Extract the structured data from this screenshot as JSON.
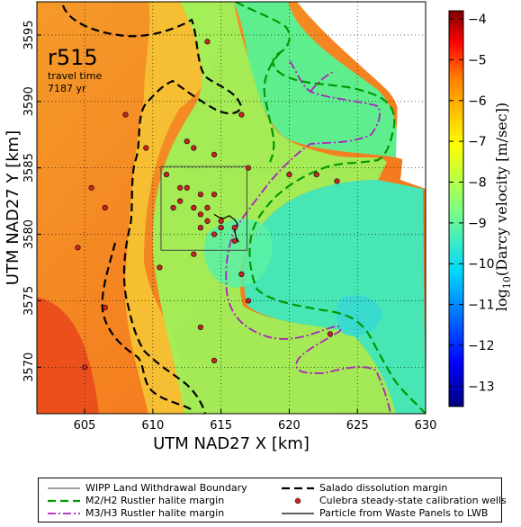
{
  "chart_data": {
    "type": "heatmap",
    "panel_label": "r515",
    "travel_time_label": "travel time",
    "travel_time_value": "7187 yr",
    "xlabel": "UTM NAD27 X [km]",
    "ylabel": "UTM NAD27 Y [km]",
    "xlim": [
      601.5,
      630
    ],
    "ylim": [
      3566.5,
      3597.5
    ],
    "xticks": [
      605,
      610,
      615,
      620,
      625,
      630
    ],
    "yticks": [
      3570,
      3575,
      3580,
      3585,
      3590,
      3595
    ],
    "grid": true,
    "colorbar": {
      "label": "log10(Darcy velocity [m/sec])",
      "ticks": [
        -4,
        -5,
        -6,
        -7,
        -8,
        -9,
        -10,
        -11,
        -12,
        -13
      ],
      "range": [
        -13.5,
        -3.8
      ],
      "colormap": [
        "#00007f",
        "#0000ff",
        "#007fff",
        "#00ffff",
        "#7fff7f",
        "#ffff00",
        "#ff7f00",
        "#ff0000",
        "#7f0000"
      ]
    },
    "wipp_boundary": {
      "x": [
        610.6,
        616.9
      ],
      "y": [
        3578.8,
        3585.1
      ]
    },
    "calibration_wells": [
      [
        608.0,
        3589.0
      ],
      [
        609.5,
        3586.5
      ],
      [
        612.5,
        3587.0
      ],
      [
        613.0,
        3586.5
      ],
      [
        614.5,
        3586.0
      ],
      [
        616.5,
        3589.0
      ],
      [
        617.0,
        3585.0
      ],
      [
        620.0,
        3584.5
      ],
      [
        623.5,
        3584.0
      ],
      [
        622.0,
        3584.5
      ],
      [
        611.0,
        3584.5
      ],
      [
        612.0,
        3583.5
      ],
      [
        612.5,
        3583.5
      ],
      [
        613.5,
        3583.0
      ],
      [
        614.5,
        3583.0
      ],
      [
        612.0,
        3582.5
      ],
      [
        613.0,
        3582.0
      ],
      [
        614.0,
        3582.0
      ],
      [
        611.5,
        3582.0
      ],
      [
        613.5,
        3581.5
      ],
      [
        614.0,
        3581.0
      ],
      [
        615.0,
        3581.0
      ],
      [
        613.5,
        3580.5
      ],
      [
        615.0,
        3580.5
      ],
      [
        614.5,
        3580.0
      ],
      [
        616.0,
        3579.5
      ],
      [
        616.0,
        3580.5
      ],
      [
        613.0,
        3578.5
      ],
      [
        616.5,
        3577.0
      ],
      [
        610.5,
        3577.5
      ],
      [
        604.5,
        3579.0
      ],
      [
        606.5,
        3582.0
      ],
      [
        605.5,
        3583.5
      ],
      [
        614.5,
        3570.5
      ],
      [
        613.5,
        3573.0
      ],
      [
        617.0,
        3575.0
      ],
      [
        605.0,
        3570.0
      ],
      [
        606.5,
        3574.5
      ],
      [
        614.0,
        3594.5
      ],
      [
        623.0,
        3572.5
      ]
    ],
    "particle_path": [
      [
        614.5,
        3581.5
      ],
      [
        614.8,
        3581.3
      ],
      [
        615.2,
        3581.2
      ],
      [
        615.6,
        3581.4
      ],
      [
        616.0,
        3581.1
      ],
      [
        616.2,
        3580.8
      ],
      [
        616.0,
        3580.3
      ],
      [
        616.1,
        3579.8
      ],
      [
        616.3,
        3579.4
      ]
    ],
    "legend": [
      "WIPP Land Withdrawal Boundary",
      "Salado dissolution margin",
      "M2/H2 Rustler halite margin",
      "Culebra steady-state calibration wells",
      "M3/H3 Rustler halite margin",
      "Particle from Waste Panels to LWB"
    ],
    "legend_placement": "bottom",
    "colors": {
      "salado": "#000000",
      "m2h2": "#009900",
      "m3h3": "#aa22bb",
      "wells": "#cc2222",
      "boundary": "#444444",
      "particle": "#000000"
    }
  }
}
